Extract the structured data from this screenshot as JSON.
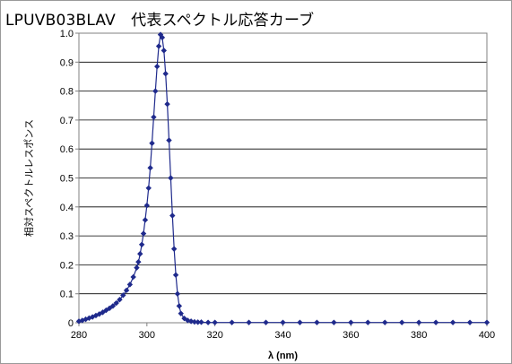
{
  "chart_data": {
    "type": "scatter",
    "title": "LPUVB03BLAV　代表スペクトル応答カーブ",
    "xlabel": "λ (nm)",
    "ylabel": "相対スペクトルレスポンス",
    "xlim": [
      280,
      400
    ],
    "ylim": [
      0,
      1.0
    ],
    "xticks": [
      280,
      300,
      320,
      340,
      360,
      380,
      400
    ],
    "yticks": [
      0,
      0.1,
      0.2,
      0.3,
      0.4,
      0.5,
      0.6,
      0.7,
      0.8,
      0.9,
      1.0
    ],
    "ytick_labels": [
      "0",
      "0.1",
      "0.2",
      "0.3",
      "0.4",
      "0.5",
      "0.6",
      "0.7",
      "0.8",
      "0.9",
      "1.0"
    ],
    "grid": "horizontal",
    "legend": "none",
    "series": [
      {
        "color": "#1f2a8c",
        "marker": "diamond",
        "line": true,
        "x": [
          280,
          281,
          282,
          283,
          284,
          285,
          286,
          287,
          288,
          289,
          290,
          291,
          292,
          293,
          294,
          295,
          296,
          297,
          297.5,
          298,
          298.5,
          299,
          299.5,
          300,
          300.5,
          301,
          301.5,
          302,
          302.5,
          303,
          303.5,
          304,
          304.5,
          305,
          305.5,
          306,
          306.5,
          307,
          307.5,
          308,
          308.5,
          309,
          309.5,
          310,
          311,
          312,
          313,
          314,
          315,
          316,
          318,
          320,
          325,
          330,
          335,
          340,
          345,
          350,
          355,
          360,
          365,
          370,
          375,
          380,
          385,
          390,
          395,
          400
        ],
        "y": [
          0.005,
          0.008,
          0.012,
          0.016,
          0.02,
          0.025,
          0.03,
          0.036,
          0.043,
          0.05,
          0.058,
          0.068,
          0.08,
          0.095,
          0.112,
          0.132,
          0.158,
          0.19,
          0.21,
          0.238,
          0.27,
          0.308,
          0.355,
          0.405,
          0.465,
          0.535,
          0.62,
          0.71,
          0.8,
          0.885,
          0.955,
          0.995,
          0.985,
          0.94,
          0.86,
          0.755,
          0.63,
          0.5,
          0.37,
          0.255,
          0.165,
          0.1,
          0.058,
          0.032,
          0.015,
          0.008,
          0.005,
          0.003,
          0.002,
          0.002,
          0.001,
          0.001,
          0.001,
          0.001,
          0.001,
          0.001,
          0.001,
          0.001,
          0.001,
          0.001,
          0.001,
          0.001,
          0.001,
          0.001,
          0.001,
          0.001,
          0.001,
          0.001
        ]
      }
    ]
  }
}
